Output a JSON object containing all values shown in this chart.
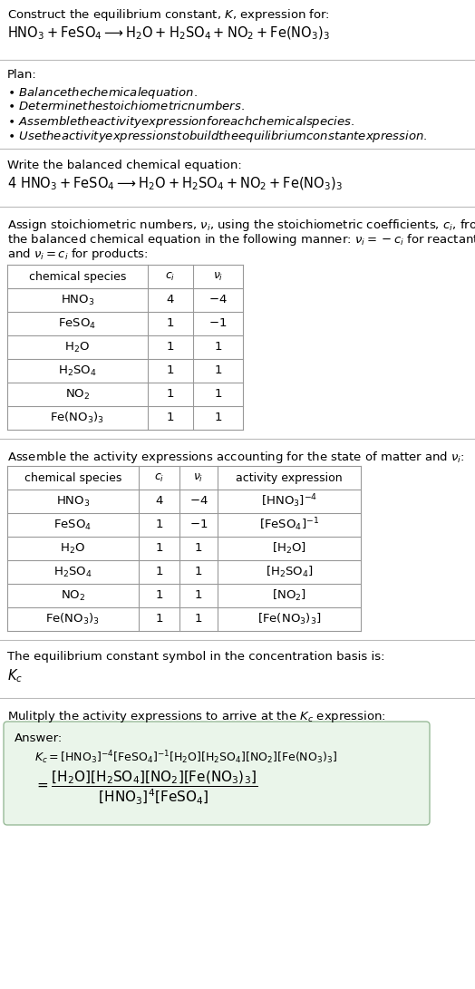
{
  "bg_color": "#ffffff",
  "text_color": "#000000",
  "title_line1": "Construct the equilibrium constant, $K$, expression for:",
  "title_line2": "$\\mathrm{HNO_3 + FeSO_4 \\longrightarrow H_2O + H_2SO_4 + NO_2 + Fe(NO_3)_3}$",
  "plan_header": "Plan:",
  "plan_items": [
    "\\bullet\\ Balance the chemical equation.",
    "\\bullet\\ Determine the stoichiometric numbers.",
    "\\bullet\\ Assemble the activity expression for each chemical species.",
    "\\bullet\\ Use the activity expressions to build the equilibrium constant expression."
  ],
  "balanced_header": "Write the balanced chemical equation:",
  "balanced_eq": "$\\mathrm{4\\ HNO_3 + FeSO_4 \\longrightarrow H_2O + H_2SO_4 + NO_2 + Fe(NO_3)_3}$",
  "stoich_header_lines": [
    "Assign stoichiometric numbers, $\\nu_i$, using the stoichiometric coefficients, $c_i$, from",
    "the balanced chemical equation in the following manner: $\\nu_i = -c_i$ for reactants",
    "and $\\nu_i = c_i$ for products:"
  ],
  "table1_headers": [
    "chemical species",
    "$c_i$",
    "$\\nu_i$"
  ],
  "table1_data": [
    [
      "$\\mathrm{HNO_3}$",
      "4",
      "$-4$"
    ],
    [
      "$\\mathrm{FeSO_4}$",
      "1",
      "$-1$"
    ],
    [
      "$\\mathrm{H_2O}$",
      "1",
      "1"
    ],
    [
      "$\\mathrm{H_2SO_4}$",
      "1",
      "1"
    ],
    [
      "$\\mathrm{NO_2}$",
      "1",
      "1"
    ],
    [
      "$\\mathrm{Fe(NO_3)_3}$",
      "1",
      "1"
    ]
  ],
  "activity_header": "Assemble the activity expressions accounting for the state of matter and $\\nu_i$:",
  "table2_headers": [
    "chemical species",
    "$c_i$",
    "$\\nu_i$",
    "activity expression"
  ],
  "table2_data": [
    [
      "$\\mathrm{HNO_3}$",
      "4",
      "$-4$",
      "$[\\mathrm{HNO_3}]^{-4}$"
    ],
    [
      "$\\mathrm{FeSO_4}$",
      "1",
      "$-1$",
      "$[\\mathrm{FeSO_4}]^{-1}$"
    ],
    [
      "$\\mathrm{H_2O}$",
      "1",
      "1",
      "$[\\mathrm{H_2O}]$"
    ],
    [
      "$\\mathrm{H_2SO_4}$",
      "1",
      "1",
      "$[\\mathrm{H_2SO_4}]$"
    ],
    [
      "$\\mathrm{NO_2}$",
      "1",
      "1",
      "$[\\mathrm{NO_2}]$"
    ],
    [
      "$\\mathrm{Fe(NO_3)_3}$",
      "1",
      "1",
      "$[\\mathrm{Fe(NO_3)_3}]$"
    ]
  ],
  "symbol_header": "The equilibrium constant symbol in the concentration basis is:",
  "symbol": "$K_c$",
  "multiply_header": "Mulitply the activity expressions to arrive at the $K_c$ expression:",
  "answer_label": "Answer:",
  "answer_line1": "$K_c = [\\mathrm{HNO_3}]^{-4}[\\mathrm{FeSO_4}]^{-1}[\\mathrm{H_2O}][\\mathrm{H_2SO_4}][\\mathrm{NO_2}][\\mathrm{Fe(NO_3)_3}]$",
  "answer_line2a": "$= \\dfrac{[\\mathrm{H_2O}][\\mathrm{H_2SO_4}][\\mathrm{NO_2}][\\mathrm{Fe(NO_3)_3}]}{[\\mathrm{HNO_3}]^4[\\mathrm{FeSO_4}]}$",
  "table_border_color": "#999999",
  "answer_box_facecolor": "#eaf5ea",
  "answer_box_edgecolor": "#99bb99",
  "divider_color": "#bbbbbb",
  "font_size": 9.5
}
